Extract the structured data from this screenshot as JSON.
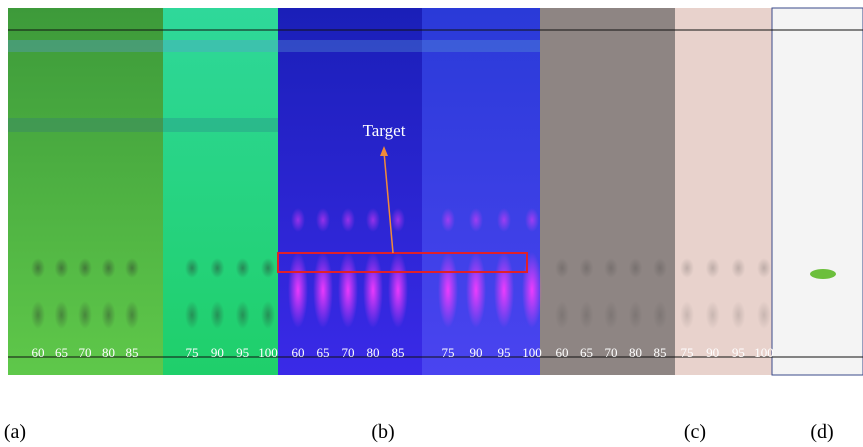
{
  "annotation": "Target",
  "panels": [
    {
      "lanes": [
        "60",
        "65",
        "70",
        "80",
        "85"
      ]
    },
    {
      "lanes": [
        "75",
        "90",
        "95",
        "100"
      ]
    },
    {
      "lanes": [
        "60",
        "65",
        "70",
        "80",
        "85"
      ]
    },
    {
      "lanes": [
        "75",
        "90",
        "95",
        "100"
      ]
    },
    {
      "lanes": [
        "60",
        "65",
        "70",
        "80",
        "85"
      ]
    },
    {
      "lanes": [
        "75",
        "90",
        "95",
        "100"
      ]
    }
  ],
  "captions": [
    "(a)",
    "(b)",
    "(c)",
    "(d)"
  ]
}
